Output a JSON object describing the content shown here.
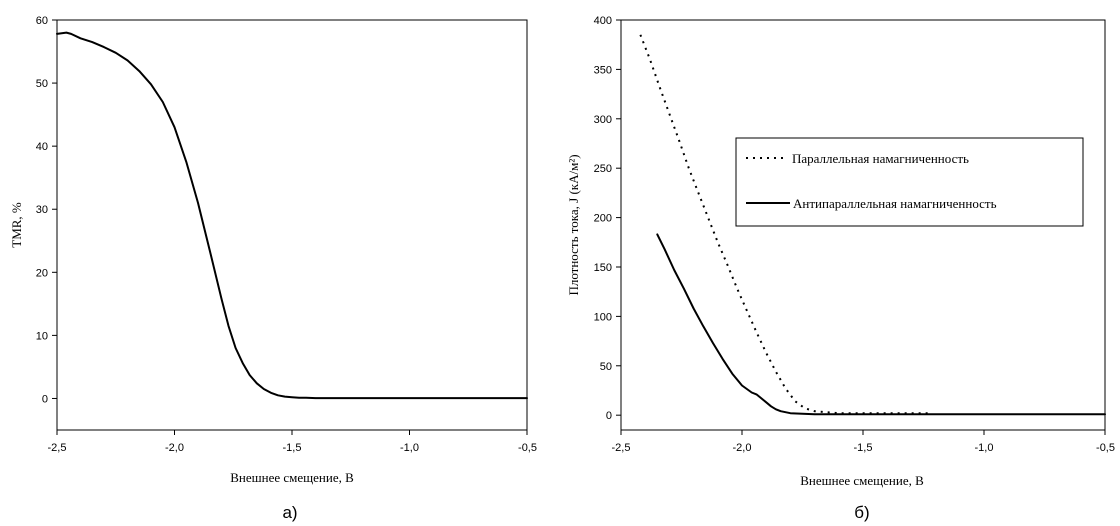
{
  "chart_data": [
    {
      "type": "line",
      "panel_label": "а)",
      "title": "",
      "xlabel": "Внешнее смещение, В",
      "ylabel": "TMR, %",
      "xlim": [
        -2.5,
        -0.5
      ],
      "ylim": [
        -5,
        60
      ],
      "x_ticks": [
        "-2,5",
        "-2,0",
        "-1,5",
        "-1,0",
        "-0,5"
      ],
      "y_ticks": [
        "0",
        "10",
        "20",
        "30",
        "40",
        "50",
        "60"
      ],
      "grid": false,
      "series": [
        {
          "x": [
            -2.5,
            -2.46,
            -2.44,
            -2.4,
            -2.35,
            -2.3,
            -2.25,
            -2.2,
            -2.15,
            -2.1,
            -2.05,
            -2.0,
            -1.95,
            -1.9,
            -1.85,
            -1.8,
            -1.77,
            -1.74,
            -1.71,
            -1.68,
            -1.65,
            -1.62,
            -1.59,
            -1.56,
            -1.53,
            -1.5,
            -1.47,
            -1.44,
            -1.4,
            -1.35,
            -1.3,
            -1.2,
            -1.1,
            -1.0,
            -0.9,
            -0.8,
            -0.7,
            -0.6,
            -0.5
          ],
          "y": [
            57.8,
            58.0,
            57.8,
            57.1,
            56.5,
            55.7,
            54.8,
            53.6,
            51.9,
            49.8,
            47.0,
            43.0,
            37.5,
            31.0,
            23.5,
            15.8,
            11.5,
            8.0,
            5.6,
            3.7,
            2.4,
            1.5,
            0.9,
            0.5,
            0.3,
            0.2,
            0.1,
            0.1,
            0.05,
            0.05,
            0.05,
            0.05,
            0.05,
            0.05,
            0.05,
            0.05,
            0.05,
            0.05,
            0.05
          ]
        }
      ]
    },
    {
      "type": "line",
      "panel_label": "б)",
      "title": "",
      "xlabel": "Внешнее смещение, В",
      "ylabel": "Плотность тока, J (кА/м²)",
      "xlim": [
        -2.5,
        -0.5
      ],
      "ylim": [
        -15,
        400
      ],
      "x_ticks": [
        "-2,5",
        "-2,0",
        "-1,5",
        "-1,0",
        "-0,5"
      ],
      "y_ticks": [
        "0",
        "50",
        "100",
        "150",
        "200",
        "250",
        "300",
        "350",
        "400"
      ],
      "grid": false,
      "legend_position": "top-right",
      "series": [
        {
          "name": "Параллельная намагниченность",
          "style": "dotted",
          "x": [
            -2.42,
            -2.38,
            -2.34,
            -2.3,
            -2.26,
            -2.22,
            -2.18,
            -2.14,
            -2.1,
            -2.06,
            -2.02,
            -1.98,
            -1.94,
            -1.9,
            -1.86,
            -1.82,
            -1.78,
            -1.74,
            -1.7,
            -1.65,
            -1.6,
            -1.5,
            -1.4,
            -1.3,
            -1.22
          ],
          "y": [
            385,
            360,
            332,
            305,
            278,
            250,
            225,
            200,
            175,
            152,
            128,
            106,
            84,
            63,
            44,
            27,
            14,
            7,
            4,
            3,
            2,
            2,
            2,
            2,
            2
          ]
        },
        {
          "name": "Антипараллельная намагниченность",
          "style": "solid",
          "x": [
            -2.35,
            -2.32,
            -2.28,
            -2.24,
            -2.2,
            -2.16,
            -2.12,
            -2.08,
            -2.04,
            -2.0,
            -1.96,
            -1.94,
            -1.92,
            -1.9,
            -1.88,
            -1.86,
            -1.84,
            -1.8,
            -1.75,
            -1.7,
            -1.6,
            -1.5,
            -1.3,
            -1.1,
            -0.9,
            -0.7,
            -0.5
          ],
          "y": [
            183,
            168,
            147,
            128,
            108,
            90,
            73,
            57,
            42,
            30,
            23,
            21,
            17,
            13,
            9,
            6,
            4,
            2,
            1.5,
            1,
            1,
            1,
            1,
            1,
            1,
            1,
            1
          ]
        }
      ]
    }
  ]
}
